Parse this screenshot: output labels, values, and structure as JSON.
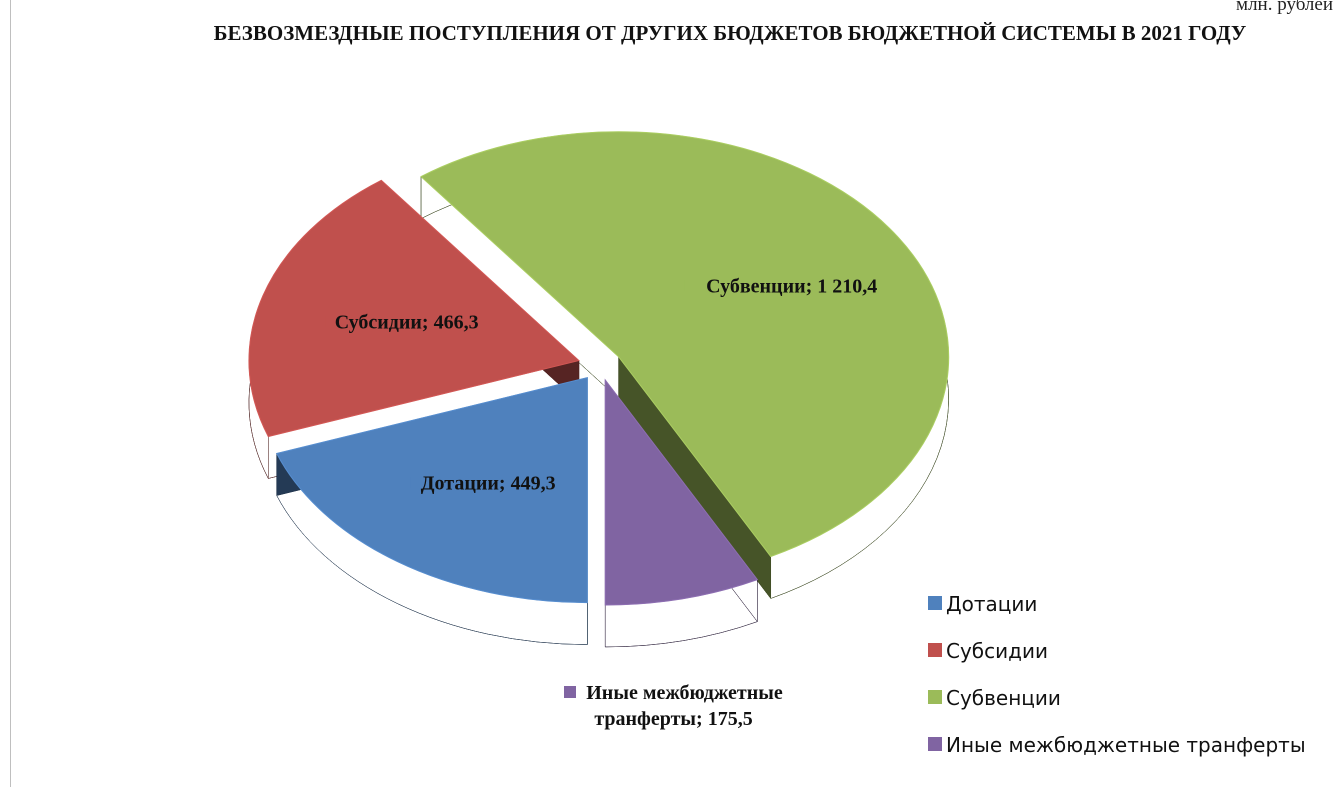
{
  "chart_data": {
    "type": "pie",
    "title": "БЕЗВОЗМЕЗДНЫЕ ПОСТУПЛЕНИЯ ОТ ДРУГИХ БЮДЖЕТОВ БЮДЖЕТНОЙ СИСТЕМЫ В 2021 ГОДУ",
    "subtitle": "млн. рублей",
    "categories": [
      "Дотации",
      "Субсидии",
      "Субвенции",
      "Иные межбюджетные транферты"
    ],
    "values": [
      449.3,
      466.3,
      1210.4,
      175.5
    ],
    "value_labels": [
      "Дотации; 449,3",
      "Субсидии; 466,3",
      "Субвенции; 1 210,4",
      "Иные межбюджетные транферты; 175,5"
    ],
    "colors": [
      "#4f81bd",
      "#c0504d",
      "#9bbb59",
      "#8064a2"
    ],
    "legend": "bottom-right"
  }
}
